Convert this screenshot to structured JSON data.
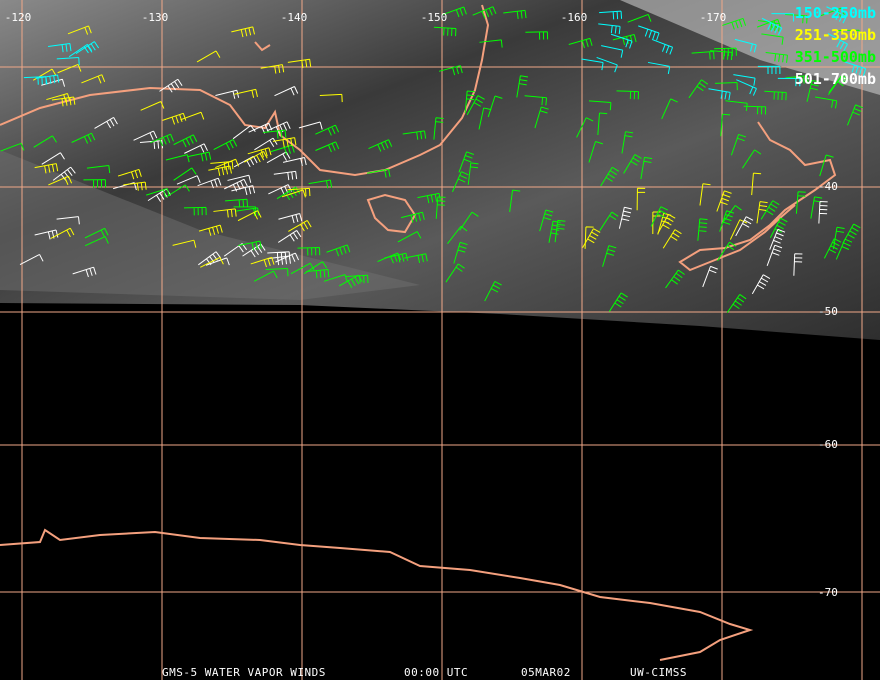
{
  "map": {
    "lon_labels": [
      "-120",
      "-130",
      "-140",
      "-150",
      "-160",
      "-170"
    ],
    "lat_labels": [
      "-40",
      "-50",
      "-60",
      "-70"
    ],
    "legend": [
      {
        "label": "150-250mb",
        "color": "#00ffff"
      },
      {
        "label": "251-350mb",
        "color": "#ffff00"
      },
      {
        "label": "351-500mb",
        "color": "#00ff00"
      },
      {
        "label": "501-700mb",
        "color": "#ffffff"
      }
    ],
    "footer": [
      "GMS-5 WATER VAPOR WINDS",
      "00:00 UTC",
      "05MAR02",
      "UW-CIMSS"
    ]
  }
}
